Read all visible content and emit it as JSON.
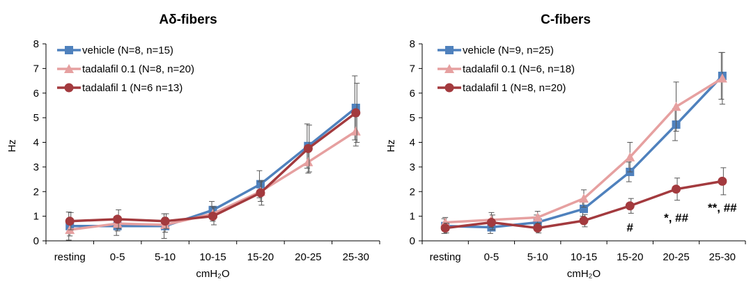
{
  "chart_data": [
    {
      "type": "line",
      "title": "Aδ-fibers",
      "xlabel": "cmH₂O",
      "ylabel": "Hz",
      "ylim": [
        0,
        8
      ],
      "yticks": [
        "0",
        "1",
        "2",
        "3",
        "4",
        "5",
        "6",
        "7",
        "8"
      ],
      "categories": [
        "resting",
        "0-5",
        "5-10",
        "10-15",
        "15-20",
        "20-25",
        "25-30"
      ],
      "grid": false,
      "legend_position": "top-left",
      "series": [
        {
          "name": "vehicle (N=8, n=15)",
          "color": "#4f81bd",
          "marker": "square",
          "values": [
            0.6,
            0.6,
            0.6,
            1.25,
            2.3,
            3.85,
            5.4
          ],
          "errors": [
            0.57,
            0.38,
            0.5,
            0.35,
            0.55,
            0.9,
            1.3
          ]
        },
        {
          "name": "tadalafil 0.1 (N=8, n=20)",
          "color": "#e6a0a0",
          "marker": "triangle",
          "values": [
            0.45,
            0.7,
            0.65,
            1.1,
            2.0,
            3.2,
            4.45
          ],
          "errors": [
            0.25,
            0.3,
            0.3,
            0.3,
            0.4,
            0.45,
            0.6
          ]
        },
        {
          "name": "tadalafil 1 (N=6 n=13)",
          "color": "#a33a3e",
          "marker": "circle",
          "values": [
            0.8,
            0.88,
            0.8,
            1.0,
            1.95,
            3.75,
            5.2
          ],
          "errors": [
            0.35,
            0.38,
            0.3,
            0.35,
            0.5,
            0.95,
            1.2
          ]
        }
      ],
      "annotations": []
    },
    {
      "type": "line",
      "title": "C-fibers",
      "xlabel": "cmH₂O",
      "ylabel": "Hz",
      "ylim": [
        0,
        8
      ],
      "yticks": [
        "0",
        "1",
        "2",
        "3",
        "4",
        "5",
        "6",
        "7",
        "8"
      ],
      "categories": [
        "resting",
        "0-5",
        "5-10",
        "10-15",
        "15-20",
        "20-25",
        "25-30"
      ],
      "grid": false,
      "legend_position": "top-left",
      "series": [
        {
          "name": "vehicle (N=9, n=25)",
          "color": "#4f81bd",
          "marker": "square",
          "values": [
            0.6,
            0.55,
            0.75,
            1.3,
            2.8,
            4.72,
            6.7
          ],
          "errors": [
            0.3,
            0.25,
            0.3,
            0.3,
            0.4,
            0.65,
            0.95
          ]
        },
        {
          "name": "tadalafil 0.1 (N=6, n=18)",
          "color": "#e6a0a0",
          "marker": "triangle",
          "values": [
            0.75,
            0.85,
            0.95,
            1.72,
            3.4,
            5.45,
            6.6
          ],
          "errors": [
            0.2,
            0.3,
            0.25,
            0.35,
            0.6,
            1.0,
            1.05
          ]
        },
        {
          "name": "tadalafil 1 (N=8, n=20)",
          "color": "#a33a3e",
          "marker": "circle",
          "values": [
            0.52,
            0.75,
            0.52,
            0.82,
            1.42,
            2.1,
            2.42
          ],
          "errors": [
            0.2,
            0.3,
            0.2,
            0.25,
            0.3,
            0.45,
            0.55
          ]
        }
      ],
      "annotations": [
        {
          "category": "15-20",
          "y": 0.55,
          "text": "#"
        },
        {
          "category": "20-25",
          "y": 0.95,
          "text": "*, ##"
        },
        {
          "category": "25-30",
          "y": 1.35,
          "text": "**, ##"
        }
      ]
    }
  ]
}
